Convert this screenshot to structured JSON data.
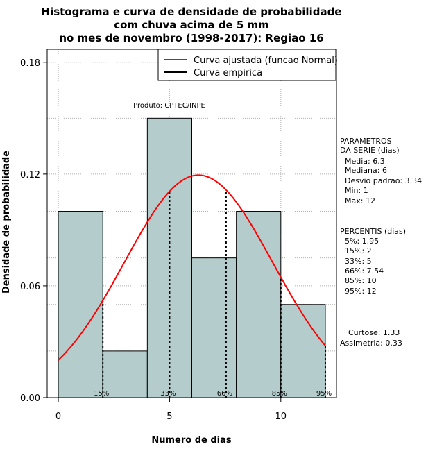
{
  "chart_data": {
    "type": "bar",
    "title_lines": [
      "Histograma e curva de densidade de probabilidade",
      "com chuva acima de 5 mm",
      "no mes de novembro (1998-2017): Regiao 16"
    ],
    "xlabel": "Numero de dias",
    "ylabel": "Densidade de probabilidade",
    "xlim": [
      -0.5,
      12.5
    ],
    "ylim": [
      0,
      0.187
    ],
    "xticks": [
      0,
      5,
      10
    ],
    "yticks": [
      0.0,
      0.06,
      0.12,
      0.18
    ],
    "ytick_labels": [
      "0.00",
      "0.06",
      "0.12",
      "0.18"
    ],
    "grid": true,
    "bars": [
      {
        "x0": 0,
        "x1": 2,
        "value": 0.1
      },
      {
        "x0": 2,
        "x1": 4,
        "value": 0.025
      },
      {
        "x0": 4,
        "x1": 6,
        "value": 0.15
      },
      {
        "x0": 6,
        "x1": 8,
        "value": 0.075
      },
      {
        "x0": 8,
        "x1": 10,
        "value": 0.1
      },
      {
        "x0": 10,
        "x1": 12,
        "value": 0.05
      }
    ],
    "bar_color": "#b4cccc",
    "curve": {
      "name": "Curva ajustada (funcao Normal)",
      "color": "#ff0000",
      "mean": 6.3,
      "sd": 3.34,
      "range": [
        0,
        12
      ]
    },
    "empirical": {
      "name": "Curva empirica",
      "color": "#000000"
    },
    "legend_position": "top-right",
    "percentile_markers": [
      {
        "label": "15%",
        "x": 2
      },
      {
        "label": "33%",
        "x": 5
      },
      {
        "label": "66%",
        "x": 7.54
      },
      {
        "label": "85%",
        "x": 10
      },
      {
        "label": "95%",
        "x": 12
      }
    ],
    "product_label": "Produto: CPTEC/INPE",
    "parametros": {
      "header": [
        "PARAMETROS",
        "DA SERIE (dias)"
      ],
      "lines": [
        "Media: 6.3",
        "Mediana: 6",
        "Desvio padrao: 3.34",
        "Min: 1",
        "Max: 12"
      ]
    },
    "percentis": {
      "header": "PERCENTIS (dias)",
      "lines": [
        "5%: 1.95",
        "15%: 2",
        "33%: 5",
        "66%: 7.54",
        "85%: 10",
        "95%: 12"
      ]
    },
    "stats": [
      "Curtose: 1.33",
      "Assimetria: 0.33"
    ]
  }
}
